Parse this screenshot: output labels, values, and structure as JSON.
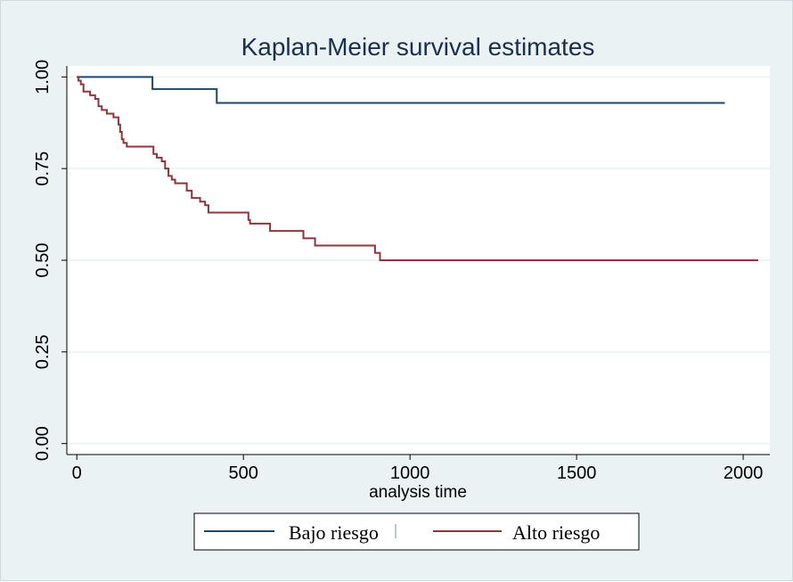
{
  "chart_data": {
    "type": "line",
    "step": true,
    "title": "Kaplan-Meier survival estimates",
    "xlabel": "analysis time",
    "ylabel": "",
    "xlim": [
      -30,
      2080
    ],
    "ylim": [
      -0.03,
      1.03
    ],
    "xticks": [
      0,
      500,
      1000,
      1500,
      2000
    ],
    "xtick_labels": [
      "0",
      "500",
      "1000",
      "1500",
      "2000"
    ],
    "yticks": [
      0,
      0.25,
      0.5,
      0.75,
      1.0
    ],
    "ytick_labels": [
      "0.00",
      "0.25",
      "0.50",
      "0.75",
      "1.00"
    ],
    "grid": true,
    "legend_position": "bottom",
    "series": [
      {
        "name": "Bajo riesgo",
        "color": "#1a476f",
        "x": [
          0,
          227,
          420,
          1945
        ],
        "y": [
          1.0,
          0.967,
          0.929,
          0.929
        ]
      },
      {
        "name": "Alto riesgo",
        "color": "#90353b",
        "x": [
          0,
          5,
          12,
          20,
          40,
          55,
          65,
          75,
          90,
          110,
          125,
          130,
          135,
          140,
          150,
          165,
          230,
          240,
          255,
          265,
          275,
          285,
          295,
          330,
          345,
          370,
          385,
          395,
          515,
          520,
          580,
          680,
          715,
          895,
          910,
          2045
        ],
        "y": [
          1.0,
          0.99,
          0.98,
          0.96,
          0.95,
          0.94,
          0.92,
          0.91,
          0.9,
          0.89,
          0.87,
          0.85,
          0.83,
          0.82,
          0.81,
          0.81,
          0.79,
          0.78,
          0.77,
          0.75,
          0.73,
          0.72,
          0.71,
          0.69,
          0.67,
          0.66,
          0.65,
          0.63,
          0.61,
          0.6,
          0.58,
          0.56,
          0.54,
          0.52,
          0.5,
          0.5
        ]
      }
    ]
  }
}
